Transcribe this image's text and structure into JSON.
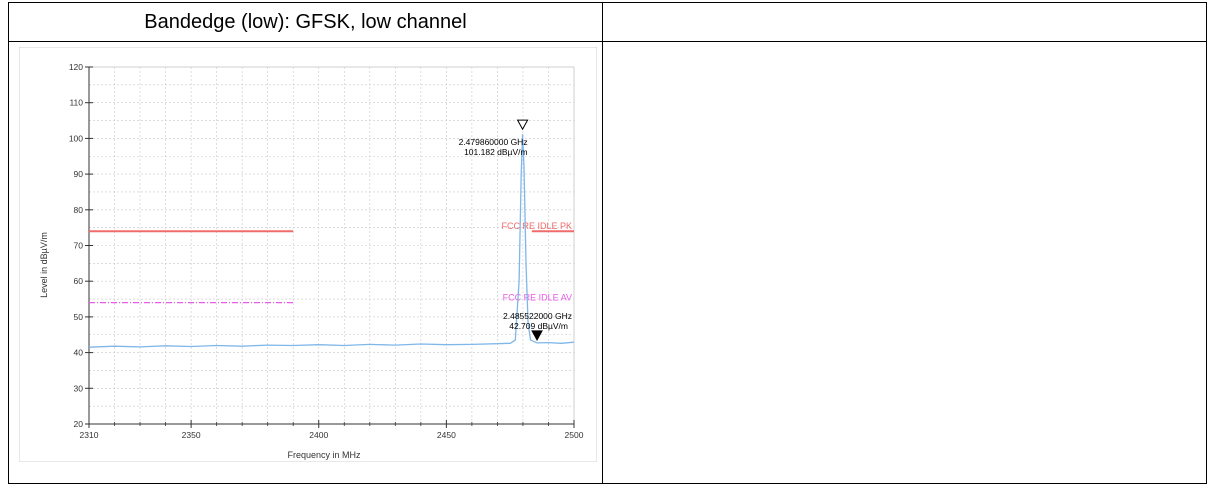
{
  "table": {
    "header_left": "Bandedge (low): GFSK, low channel",
    "header_right": ""
  },
  "chart_data": {
    "type": "line",
    "title": "",
    "xlabel": "Frequency in MHz",
    "ylabel": "Level in dBµV/m",
    "xlim": [
      2310,
      2500
    ],
    "ylim": [
      20,
      120
    ],
    "x_ticks": [
      2310,
      2350,
      2400,
      2450,
      2500
    ],
    "y_ticks": [
      20,
      30,
      40,
      50,
      60,
      70,
      80,
      90,
      100,
      110,
      120
    ],
    "grid": true,
    "series": [
      {
        "color": "#7fb7ea",
        "x": [
          2310,
          2320,
          2330,
          2340,
          2350,
          2360,
          2370,
          2380,
          2390,
          2400,
          2410,
          2420,
          2430,
          2440,
          2450,
          2460,
          2470,
          2475,
          2477,
          2478.5,
          2479.3,
          2479.86,
          2480.4,
          2481.2,
          2482,
          2483,
          2485.522,
          2490,
          2495,
          2500
        ],
        "y": [
          41.5,
          41.8,
          41.6,
          41.9,
          41.7,
          42.0,
          41.8,
          42.1,
          42.0,
          42.2,
          42.0,
          42.3,
          42.1,
          42.4,
          42.2,
          42.3,
          42.5,
          42.6,
          43.5,
          60,
          90,
          101.182,
          92,
          65,
          48,
          43.5,
          42.709,
          42.8,
          42.6,
          42.9
        ]
      }
    ],
    "limit_lines": [
      {
        "label": "FCC RE IDLE PK",
        "y": 74,
        "color": "#f26b6b",
        "style": "solid",
        "segments": [
          [
            2310,
            2390
          ],
          [
            2483.5,
            2500
          ]
        ]
      },
      {
        "label": "FCC RE IDLE AV",
        "y": 54,
        "color": "#e85ce8",
        "style": "dashdot",
        "segments": [
          [
            2310,
            2390
          ]
        ]
      }
    ],
    "markers": [
      {
        "x": 2479.86,
        "y": 101.182,
        "symbol": "open-triangle-down",
        "freq_label": "2.479860000 GHz",
        "level_label": "101.182 dBµV/m"
      },
      {
        "x": 2485.522,
        "y": 42.709,
        "symbol": "filled-triangle-down",
        "freq_label": "2.485522000 GHz",
        "level_label": "42.709 dBµV/m"
      }
    ]
  }
}
